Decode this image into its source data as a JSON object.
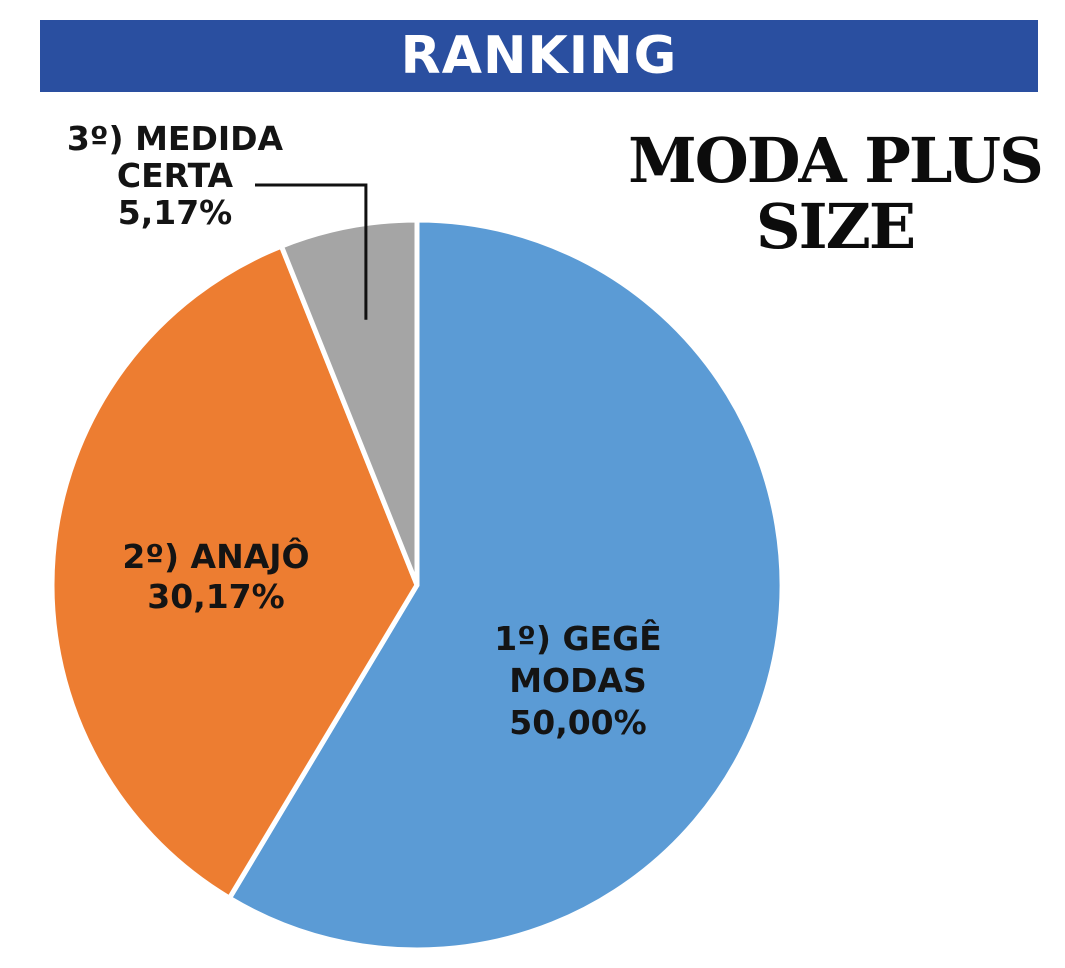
{
  "header": {
    "banner_text": "RANKING",
    "banner_color": "#2a4fa0"
  },
  "chart_data": {
    "type": "pie",
    "title": "MODA PLUS SIZE",
    "title_lines": [
      "MODA PLUS",
      "SIZE"
    ],
    "slices": [
      {
        "rank": "1º",
        "name": "GEGÊ MODAS",
        "value": 50.0,
        "label": "50,00%",
        "label_lines": [
          "1º) GEGÊ",
          "MODAS",
          "50,00%"
        ],
        "color": "#5b9bd5"
      },
      {
        "rank": "2º",
        "name": "ANAJÔ",
        "value": 30.17,
        "label": "30,17%",
        "label_lines": [
          "2º) ANAJÔ",
          "30,17%"
        ],
        "color": "#ed7d31"
      },
      {
        "rank": "3º",
        "name": "MEDIDA CERTA",
        "value": 5.17,
        "label": "5,17%",
        "label_lines": [
          "3º) MEDIDA",
          "CERTA",
          "5,17%"
        ],
        "color": "#a5a5a5"
      }
    ],
    "start_angle_deg": 0,
    "direction": "clockwise",
    "legend": "none"
  }
}
